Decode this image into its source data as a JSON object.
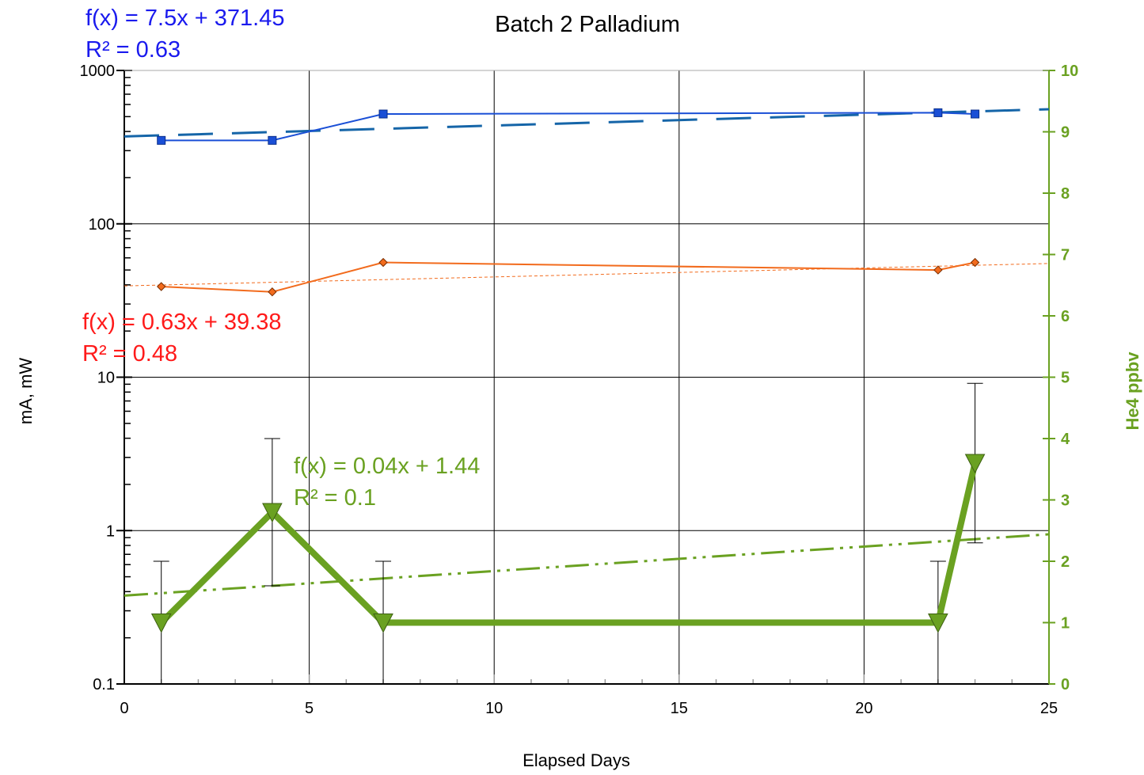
{
  "chart_data": {
    "type": "line",
    "title": "Batch 2 Palladium",
    "xlabel": "Elapsed Days",
    "ylabel": "mA, mW",
    "y2label": "He4 ppbv",
    "xlim": [
      0,
      25
    ],
    "ylim": [
      0.1,
      1000
    ],
    "yscale": "log",
    "y2lim": [
      0,
      10
    ],
    "x_ticks": [
      "0",
      "5",
      "10",
      "15",
      "20",
      "25"
    ],
    "y_ticks": [
      "0.1",
      "1",
      "10",
      "100",
      "1000"
    ],
    "y2_ticks": [
      "0",
      "1",
      "2",
      "3",
      "4",
      "5",
      "6",
      "7",
      "8",
      "9",
      "10"
    ],
    "grid": true,
    "colors": {
      "blue_series": "#1a4fd6",
      "blue_trend": "#1565a8",
      "orange_series": "#f26b1d",
      "green_series": "#6aa121",
      "blue_text": "#1a1aee",
      "red_text": "#ff1a1a",
      "green_text": "#6aa121"
    },
    "series": [
      {
        "axis": "left",
        "marker": "square",
        "x": [
          1,
          4,
          7,
          22,
          23
        ],
        "y": [
          350,
          350,
          520,
          530,
          520
        ]
      },
      {
        "axis": "left",
        "marker": "diamond",
        "x": [
          1,
          4,
          7,
          22,
          23
        ],
        "y": [
          39,
          36,
          56,
          50,
          56
        ]
      },
      {
        "axis": "right",
        "marker": "triangle-down",
        "x": [
          1,
          4,
          7,
          22,
          23
        ],
        "y": [
          1.0,
          2.8,
          1.0,
          1.0,
          3.6
        ],
        "error": [
          1.0,
          1.2,
          1.0,
          1.0,
          1.3
        ]
      }
    ],
    "trendlines": [
      {
        "series": 0,
        "slope": 7.5,
        "intercept": 371.45,
        "equation": "f(x) = 7.5x + 371.45",
        "r2": "R² = 0.63"
      },
      {
        "series": 1,
        "slope": 0.63,
        "intercept": 39.38,
        "equation": "f(x) = 0.63x + 39.38",
        "r2": "R² = 0.48"
      },
      {
        "series": 2,
        "slope": 0.04,
        "intercept": 1.44,
        "equation": "f(x) = 0.04x + 1.44",
        "r2": "R² = 0.1"
      }
    ]
  }
}
